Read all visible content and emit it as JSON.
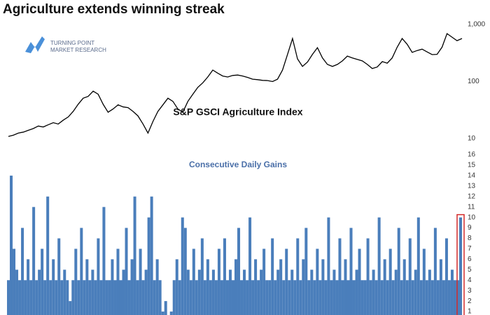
{
  "logo": [
    "TURNING POINT",
    "MARKET RESEARCH"
  ],
  "chart_data": [
    {
      "type": "line",
      "title": "Agriculture extends winning streak",
      "label": "S&P GSCI Agriculture Index",
      "log_scale": true,
      "ylim": [
        10,
        1000
      ],
      "yticks": [
        10,
        100,
        {
          "value": 1000,
          "label": "1,000"
        }
      ],
      "color": "#000000",
      "values": [
        10.9,
        11.5,
        12.5,
        13,
        14,
        15,
        16.6,
        16,
        17.5,
        19,
        18,
        21,
        24,
        30,
        40,
        51,
        55,
        68,
        60,
        40,
        29,
        33,
        39,
        36,
        35,
        30,
        25,
        18,
        12.5,
        20,
        30,
        39,
        51,
        45,
        33,
        29,
        45,
        60,
        79,
        95,
        120,
        159,
        140,
        125,
        120,
        128,
        130,
        125,
        118,
        110,
        108,
        105,
        104,
        100,
        110,
        159,
        300,
        569,
        250,
        184,
        220,
        300,
        393,
        260,
        200,
        184,
        200,
        230,
        280,
        260,
        244,
        230,
        200,
        169,
        180,
        224,
        210,
        260,
        400,
        569,
        450,
        325,
        350,
        370,
        330,
        297,
        300,
        400,
        693,
        600,
        520,
        569
      ]
    },
    {
      "type": "bar",
      "title": "Consecutive Daily Gains",
      "ylim": [
        0,
        16
      ],
      "yticks": [
        1,
        2,
        3,
        4,
        5,
        6,
        7,
        8,
        9,
        10,
        11,
        12,
        13,
        14,
        15,
        16
      ],
      "color": "#4a7ebb",
      "highlight_color": "#d42a2a",
      "values": [
        4,
        14,
        7,
        5,
        4,
        9,
        4,
        6,
        4,
        11,
        4,
        5,
        7,
        4,
        12,
        4,
        6,
        4,
        8,
        4,
        5,
        4,
        2,
        4,
        7,
        4,
        9,
        4,
        6,
        4,
        5,
        4,
        8,
        4,
        11,
        4,
        4,
        6,
        4,
        7,
        4,
        5,
        9,
        4,
        6,
        12,
        4,
        7,
        4,
        5,
        10,
        12,
        4,
        6,
        4,
        1,
        2,
        0,
        1,
        4,
        6,
        4,
        10,
        9,
        5,
        4,
        7,
        4,
        5,
        8,
        4,
        6,
        4,
        5,
        4,
        7,
        4,
        8,
        4,
        5,
        4,
        6,
        9,
        4,
        5,
        4,
        10,
        4,
        6,
        4,
        5,
        7,
        4,
        4,
        8,
        4,
        5,
        6,
        4,
        7,
        4,
        5,
        4,
        8,
        4,
        6,
        9,
        4,
        5,
        4,
        7,
        4,
        6,
        4,
        10,
        4,
        5,
        4,
        8,
        4,
        6,
        4,
        9,
        4,
        5,
        7,
        4,
        4,
        8,
        4,
        5,
        4,
        10,
        4,
        6,
        4,
        7,
        4,
        5,
        9,
        4,
        6,
        4,
        8,
        4,
        5,
        10,
        4,
        7,
        4,
        5,
        4,
        9,
        4,
        6,
        4,
        8,
        4,
        5,
        4,
        4,
        10
      ]
    }
  ]
}
